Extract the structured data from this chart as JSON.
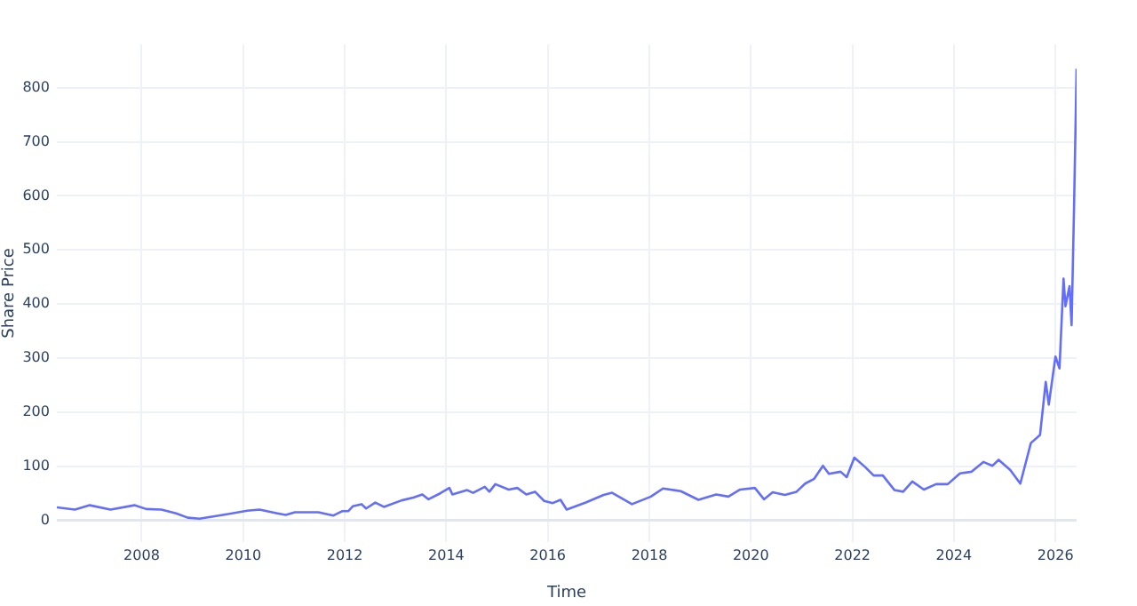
{
  "chart_data": {
    "type": "line",
    "xlabel": "Time",
    "ylabel": "Share Price",
    "grid": true,
    "legend": false,
    "marker": "none",
    "line_style": "solid",
    "xlim": [
      "2006-05-01",
      "2026-06-02"
    ],
    "xticks": [
      "2008",
      "2010",
      "2012",
      "2014",
      "2016",
      "2018",
      "2020",
      "2022",
      "2024",
      "2026"
    ],
    "ylim": [
      -40,
      880
    ],
    "yticks": [
      0,
      100,
      200,
      300,
      400,
      500,
      600,
      700,
      800
    ],
    "x": [
      "2006-05-01",
      "2006-09-08",
      "2006-12-24",
      "2007-05-22",
      "2007-11-10",
      "2008-02-03",
      "2008-05-22",
      "2008-09-05",
      "2008-11-28",
      "2009-02-20",
      "2009-08-07",
      "2010-01-30",
      "2010-04-28",
      "2010-09-03",
      "2010-11-03",
      "2011-01-08",
      "2011-06-25",
      "2011-10-12",
      "2011-12-13",
      "2012-01-26",
      "2012-02-28",
      "2012-05-01",
      "2012-06-03",
      "2012-08-08",
      "2012-10-09",
      "2013-02-14",
      "2013-05-08",
      "2013-07-13",
      "2013-08-26",
      "2013-11-18",
      "2014-01-23",
      "2014-02-14",
      "2014-05-31",
      "2014-07-13",
      "2014-10-05",
      "2014-11-07",
      "2014-12-20",
      "2015-03-26",
      "2015-05-27",
      "2015-07-31",
      "2015-10-01",
      "2015-12-06",
      "2016-02-06",
      "2016-04-02",
      "2016-05-16",
      "2016-10-01",
      "2017-02-06",
      "2017-04-08",
      "2017-08-29",
      "2018-01-12",
      "2018-04-09",
      "2018-08-15",
      "2018-12-20",
      "2019-04-27",
      "2019-07-24",
      "2019-10-16",
      "2020-01-30",
      "2020-04-05",
      "2020-06-06",
      "2020-09-02",
      "2020-11-25",
      "2021-01-26",
      "2021-04-01",
      "2021-06-03",
      "2021-07-16",
      "2021-10-08",
      "2021-11-21",
      "2022-01-15",
      "2022-04-01",
      "2022-06-03",
      "2022-08-08",
      "2022-10-31",
      "2023-01-01",
      "2023-03-08",
      "2023-05-30",
      "2023-08-26",
      "2023-11-18",
      "2024-02-14",
      "2024-05-08",
      "2024-07-31",
      "2024-10-05",
      "2024-11-18",
      "2025-02-10",
      "2025-04-23",
      "2025-07-08",
      "2025-09-12",
      "2025-10-23",
      "2025-11-14",
      "2026-01-01",
      "2026-01-30",
      "2026-02-28",
      "2026-03-14",
      "2026-04-12",
      "2026-04-27",
      "2026-05-15",
      "2026-06-02"
    ],
    "series": [
      {
        "color": "#636efa",
        "values": [
          24,
          20,
          28,
          20,
          28,
          21,
          20,
          13,
          5,
          3,
          10,
          18,
          20,
          13,
          10,
          15,
          15,
          9,
          17,
          17,
          26,
          30,
          22,
          33,
          25,
          37,
          42,
          48,
          39,
          50,
          60,
          48,
          56,
          51,
          62,
          53,
          67,
          57,
          60,
          48,
          53,
          36,
          32,
          38,
          20,
          33,
          47,
          51,
          30,
          44,
          59,
          54,
          38,
          48,
          44,
          57,
          60,
          39,
          52,
          47,
          53,
          68,
          77,
          101,
          86,
          90,
          80,
          116,
          99,
          83,
          83,
          56,
          53,
          72,
          57,
          67,
          67,
          87,
          90,
          108,
          101,
          112,
          93,
          68,
          143,
          158,
          256,
          214,
          303,
          281,
          447,
          396,
          433,
          361,
          583,
          835
        ]
      }
    ]
  }
}
